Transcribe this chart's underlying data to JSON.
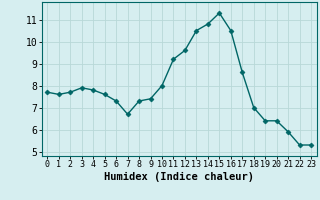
{
  "x": [
    0,
    1,
    2,
    3,
    4,
    5,
    6,
    7,
    8,
    9,
    10,
    11,
    12,
    13,
    14,
    15,
    16,
    17,
    18,
    19,
    20,
    21,
    22,
    23
  ],
  "y": [
    7.7,
    7.6,
    7.7,
    7.9,
    7.8,
    7.6,
    7.3,
    6.7,
    7.3,
    7.4,
    8.0,
    9.2,
    9.6,
    10.5,
    10.8,
    11.3,
    10.5,
    8.6,
    7.0,
    6.4,
    6.4,
    5.9,
    5.3,
    5.3
  ],
  "line_color": "#006666",
  "marker": "D",
  "marker_size": 2.5,
  "background_color": "#d6eef0",
  "grid_color": "#b8d8d8",
  "xlabel": "Humidex (Indice chaleur)",
  "xlabel_fontsize": 7.5,
  "ylabel_ticks": [
    5,
    6,
    7,
    8,
    9,
    10,
    11
  ],
  "xlim": [
    -0.5,
    23.5
  ],
  "ylim": [
    4.8,
    11.8
  ],
  "ytick_fontsize": 7,
  "xtick_fontsize": 6
}
